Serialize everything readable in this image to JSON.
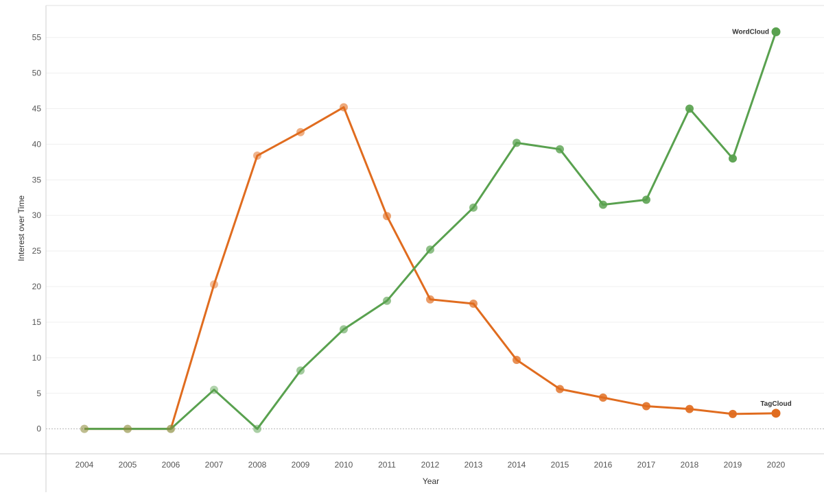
{
  "chart_data": {
    "type": "line",
    "title": "",
    "xlabel": "Year",
    "ylabel": "Interest over Time",
    "x": [
      2004,
      2005,
      2006,
      2007,
      2008,
      2009,
      2010,
      2011,
      2012,
      2013,
      2014,
      2015,
      2016,
      2017,
      2018,
      2019,
      2020
    ],
    "x_tick_labels": [
      "2004",
      "2005",
      "2006",
      "2007",
      "2008",
      "2009",
      "2010",
      "2011",
      "2012",
      "2013",
      "2014",
      "2015",
      "2016",
      "2017",
      "2018",
      "2019",
      "2020"
    ],
    "y_ticks": [
      0,
      5,
      10,
      15,
      20,
      25,
      30,
      35,
      40,
      45,
      50,
      55
    ],
    "y_tick_labels": [
      "0",
      "5",
      "10",
      "15",
      "20",
      "25",
      "30",
      "35",
      "40",
      "45",
      "50",
      "55"
    ],
    "ylim": [
      -3.5,
      59.5
    ],
    "grid": true,
    "legend": "none (series labeled at line ends)",
    "series": [
      {
        "name": "WordCloud",
        "color": "#59a14f",
        "values": [
          0,
          0,
          0,
          5.5,
          0,
          8.2,
          14,
          18,
          25.2,
          31.1,
          40.2,
          39.3,
          31.5,
          32.2,
          45,
          38,
          55.8
        ]
      },
      {
        "name": "TagCloud",
        "color": "#e06c1f",
        "values": [
          0,
          0,
          0,
          20.3,
          38.4,
          41.7,
          45.2,
          29.9,
          18.2,
          17.6,
          9.7,
          5.6,
          4.4,
          3.2,
          2.8,
          2.1,
          2.2
        ]
      }
    ]
  }
}
